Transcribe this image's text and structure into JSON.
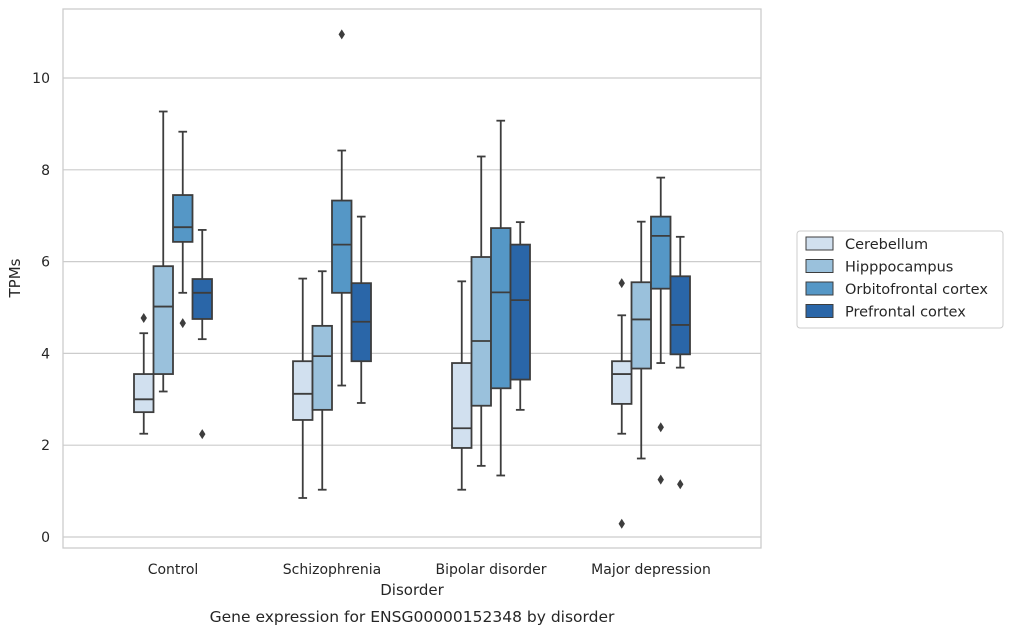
{
  "chart_data": {
    "type": "box",
    "caption": "Gene expression for ENSG00000152348 by disorder",
    "xlabel": "Disorder",
    "ylabel": "TPMs",
    "ylim": [
      -0.2,
      11.5
    ],
    "yticks": [
      0,
      2,
      4,
      6,
      8,
      10
    ],
    "grid": "horizontal",
    "legend_position": "right",
    "categories": [
      "Control",
      "Schizophrenia",
      "Bipolar disorder",
      "Major depression"
    ],
    "series": [
      {
        "name": "Cerebellum",
        "color": "#d1e0ef",
        "boxes": [
          {
            "whislo": 2.25,
            "q1": 2.72,
            "med": 3.0,
            "q3": 3.55,
            "whishi": 4.44,
            "fliers": [
              4.77
            ]
          },
          {
            "whislo": 0.85,
            "q1": 2.55,
            "med": 3.12,
            "q3": 3.83,
            "whishi": 5.63,
            "fliers": []
          },
          {
            "whislo": 1.03,
            "q1": 1.94,
            "med": 2.37,
            "q3": 3.79,
            "whishi": 5.57,
            "fliers": []
          },
          {
            "whislo": 2.25,
            "q1": 2.9,
            "med": 3.55,
            "q3": 3.83,
            "whishi": 4.83,
            "fliers": [
              5.53,
              0.29
            ]
          }
        ]
      },
      {
        "name": "Hipppocampus",
        "color": "#9ac1dc",
        "boxes": [
          {
            "whislo": 3.17,
            "q1": 3.55,
            "med": 5.02,
            "q3": 5.9,
            "whishi": 9.27,
            "fliers": []
          },
          {
            "whislo": 1.03,
            "q1": 2.77,
            "med": 3.94,
            "q3": 4.6,
            "whishi": 5.79,
            "fliers": []
          },
          {
            "whislo": 1.55,
            "q1": 2.86,
            "med": 4.27,
            "q3": 6.1,
            "whishi": 8.29,
            "fliers": []
          },
          {
            "whislo": 1.71,
            "q1": 3.67,
            "med": 4.74,
            "q3": 5.55,
            "whishi": 6.87,
            "fliers": []
          }
        ]
      },
      {
        "name": "Orbitofrontal cortex",
        "color": "#5597c6",
        "boxes": [
          {
            "whislo": 5.32,
            "q1": 6.43,
            "med": 6.75,
            "q3": 7.45,
            "whishi": 8.83,
            "fliers": [
              4.66
            ]
          },
          {
            "whislo": 3.3,
            "q1": 5.32,
            "med": 6.37,
            "q3": 7.33,
            "whishi": 8.42,
            "fliers": [
              10.95
            ]
          },
          {
            "whislo": 1.34,
            "q1": 3.24,
            "med": 5.33,
            "q3": 6.73,
            "whishi": 9.07,
            "fliers": []
          },
          {
            "whislo": 3.79,
            "q1": 5.41,
            "med": 6.56,
            "q3": 6.98,
            "whishi": 7.83,
            "fliers": [
              2.39,
              1.25
            ]
          }
        ]
      },
      {
        "name": "Prefrontal cortex",
        "color": "#2a66a8",
        "boxes": [
          {
            "whislo": 4.31,
            "q1": 4.75,
            "med": 5.32,
            "q3": 5.62,
            "whishi": 6.69,
            "fliers": [
              2.24
            ]
          },
          {
            "whislo": 2.92,
            "q1": 3.83,
            "med": 4.69,
            "q3": 5.53,
            "whishi": 6.98,
            "fliers": []
          },
          {
            "whislo": 2.77,
            "q1": 3.43,
            "med": 5.16,
            "q3": 6.37,
            "whishi": 6.86,
            "fliers": []
          },
          {
            "whislo": 3.69,
            "q1": 3.98,
            "med": 4.62,
            "q3": 5.68,
            "whishi": 6.54,
            "fliers": [
              1.15
            ]
          }
        ]
      }
    ]
  }
}
